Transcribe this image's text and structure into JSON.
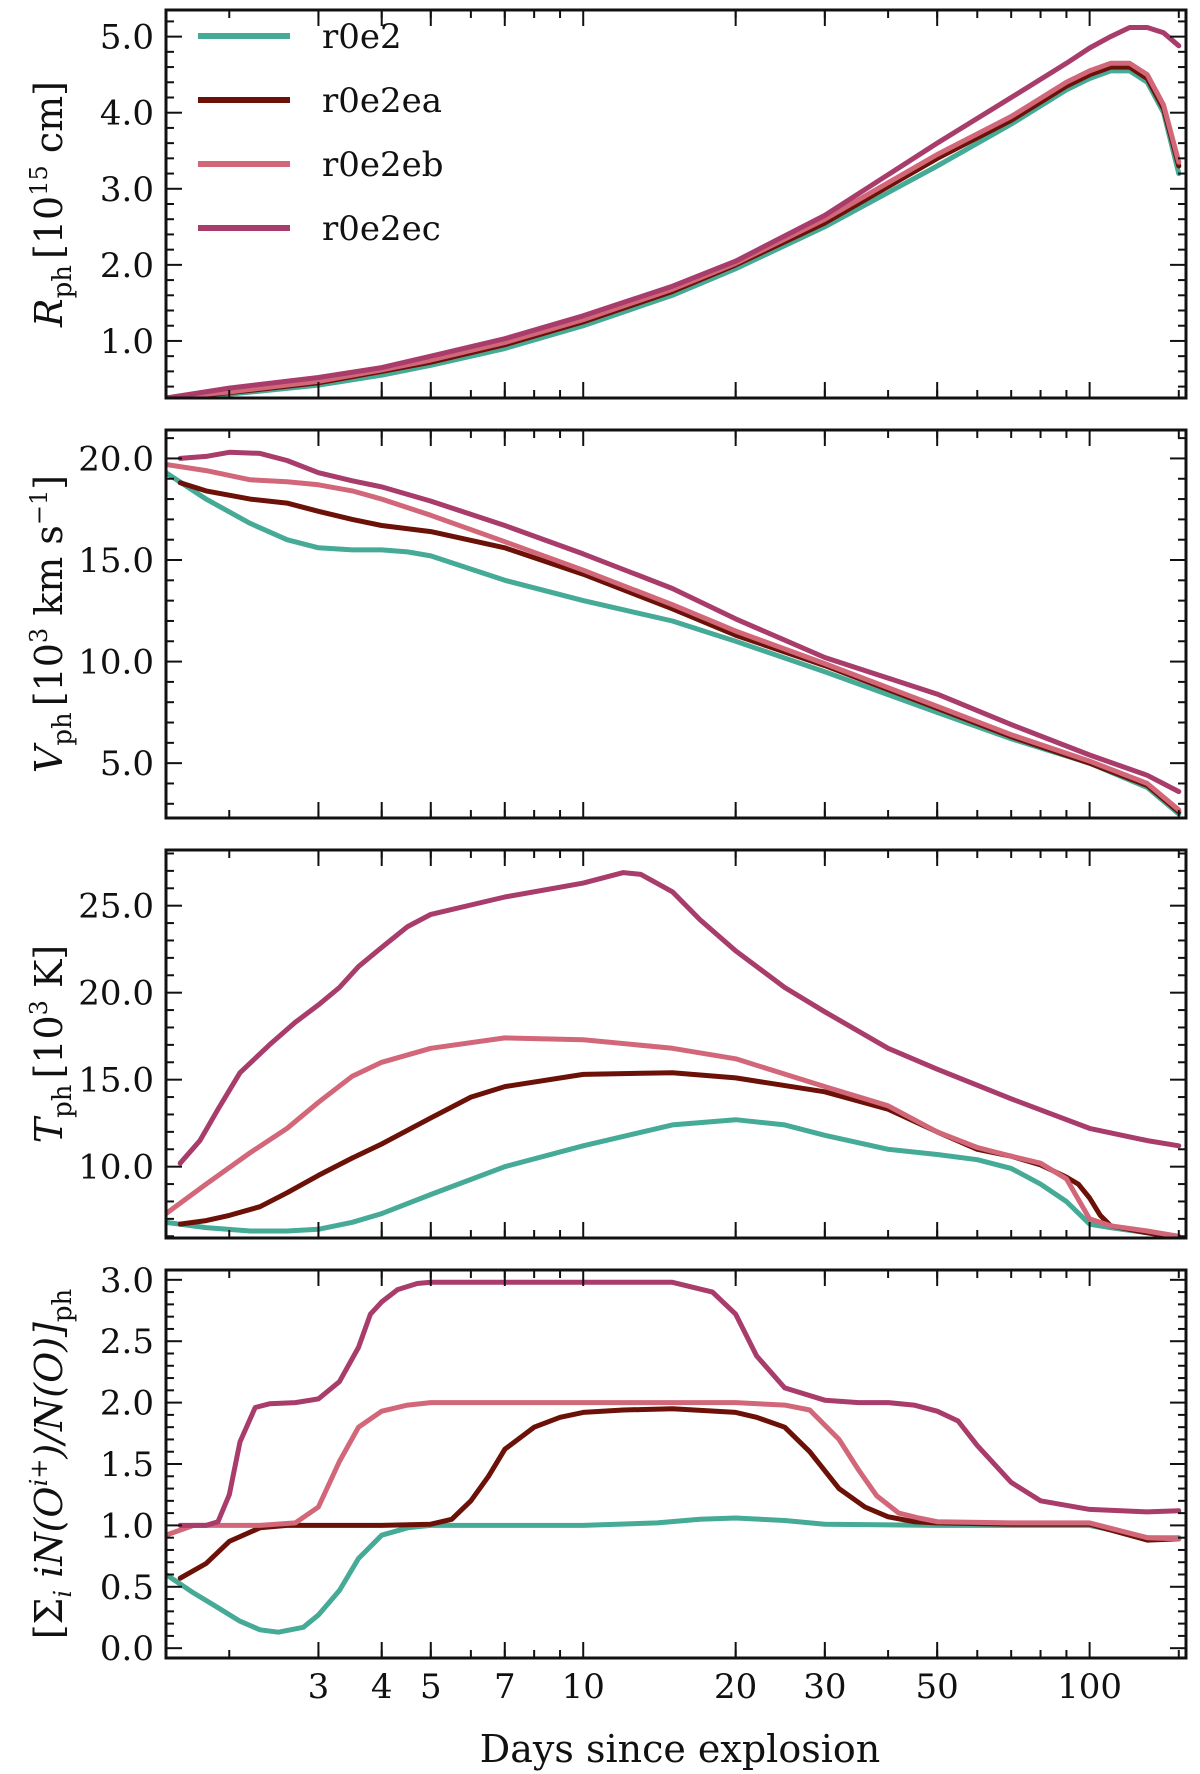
{
  "figure": {
    "xlabel": "Days since explosion",
    "xscale": "log",
    "xlim": [
      1.5,
      155
    ],
    "xticks": [
      3,
      4,
      5,
      7,
      10,
      20,
      30,
      50,
      100
    ],
    "xtick_labels": [
      "3",
      "4",
      "5",
      "7",
      "10",
      "20",
      "30",
      "50",
      "100"
    ]
  },
  "legend": {
    "placement": "top-left of first panel",
    "entries": [
      {
        "name": "r0e2",
        "color": "#45aa96"
      },
      {
        "name": "r0e2ea",
        "color": "#6b1108"
      },
      {
        "name": "r0e2eb",
        "color": "#d2677a"
      },
      {
        "name": "r0e2ec",
        "color": "#a83c6a"
      }
    ]
  },
  "chart_data": [
    {
      "type": "line",
      "ylabel": "R_ph [10^15 cm]",
      "ylabel_parts": {
        "sym": "R",
        "sub": "ph",
        "pre": "[10",
        "sup": "15",
        "post": " cm]"
      },
      "ylim": [
        0.25,
        5.35
      ],
      "yticks": [
        1.0,
        2.0,
        3.0,
        4.0,
        5.0
      ],
      "ytick_labels": [
        "1.0",
        "2.0",
        "3.0",
        "4.0",
        "5.0"
      ],
      "series": [
        {
          "name": "r0e2",
          "color": "#45aa96",
          "x": [
            1.5,
            2,
            3,
            4,
            5,
            7,
            10,
            15,
            20,
            30,
            50,
            70,
            90,
            100,
            110,
            120,
            130,
            140,
            150
          ],
          "y": [
            0.25,
            0.3,
            0.42,
            0.55,
            0.68,
            0.9,
            1.2,
            1.6,
            1.95,
            2.5,
            3.3,
            3.85,
            4.3,
            4.45,
            4.55,
            4.55,
            4.4,
            4.0,
            3.2
          ]
        },
        {
          "name": "r0e2ea",
          "color": "#6b1108",
          "x": [
            1.5,
            2,
            3,
            4,
            5,
            7,
            10,
            15,
            20,
            30,
            50,
            70,
            90,
            100,
            110,
            120,
            130,
            140,
            150
          ],
          "y": [
            0.25,
            0.32,
            0.45,
            0.6,
            0.72,
            0.95,
            1.25,
            1.65,
            2.0,
            2.55,
            3.4,
            3.9,
            4.35,
            4.5,
            4.6,
            4.6,
            4.45,
            4.05,
            3.3
          ]
        },
        {
          "name": "r0e2eb",
          "color": "#d2677a",
          "x": [
            1.5,
            2,
            3,
            4,
            5,
            7,
            10,
            15,
            20,
            30,
            50,
            70,
            90,
            100,
            110,
            120,
            130,
            140,
            150
          ],
          "y": [
            0.25,
            0.33,
            0.47,
            0.62,
            0.75,
            0.98,
            1.28,
            1.68,
            2.02,
            2.6,
            3.45,
            3.95,
            4.4,
            4.55,
            4.65,
            4.65,
            4.5,
            4.1,
            3.35
          ]
        },
        {
          "name": "r0e2ec",
          "color": "#a83c6a",
          "x": [
            1.5,
            2,
            3,
            4,
            5,
            7,
            10,
            15,
            20,
            30,
            50,
            70,
            90,
            100,
            110,
            120,
            130,
            140,
            150
          ],
          "y": [
            0.25,
            0.38,
            0.52,
            0.65,
            0.8,
            1.03,
            1.33,
            1.72,
            2.05,
            2.65,
            3.6,
            4.2,
            4.65,
            4.85,
            5.0,
            5.12,
            5.12,
            5.05,
            4.88
          ]
        }
      ]
    },
    {
      "type": "line",
      "ylabel": "V_ph [10^3 km s^-1]",
      "ylabel_parts": {
        "sym": "V",
        "sub": "ph",
        "pre": "[10",
        "sup": "3",
        "post": " km s",
        "sup2": "−1",
        "post2": "]"
      },
      "ylim": [
        2.3,
        21.4
      ],
      "yticks": [
        5.0,
        10.0,
        15.0,
        20.0
      ],
      "ytick_labels": [
        "5.0",
        "10.0",
        "15.0",
        "20.0"
      ],
      "series": [
        {
          "name": "r0e2",
          "color": "#45aa96",
          "x": [
            1.5,
            1.8,
            2.2,
            2.6,
            3,
            3.5,
            4,
            4.5,
            5,
            7,
            10,
            15,
            20,
            30,
            50,
            70,
            100,
            130,
            150
          ],
          "y": [
            19.3,
            18.0,
            16.8,
            16.0,
            15.6,
            15.5,
            15.5,
            15.4,
            15.2,
            14.0,
            13.0,
            12.0,
            11.0,
            9.5,
            7.5,
            6.2,
            5.0,
            3.8,
            2.5
          ]
        },
        {
          "name": "r0e2ea",
          "color": "#6b1108",
          "x": [
            1.6,
            1.8,
            2.2,
            2.6,
            3,
            3.5,
            4,
            5,
            7,
            10,
            15,
            20,
            30,
            50,
            70,
            100,
            130,
            150
          ],
          "y": [
            18.8,
            18.4,
            18.0,
            17.8,
            17.4,
            17.0,
            16.7,
            16.4,
            15.6,
            14.3,
            12.6,
            11.3,
            9.8,
            7.7,
            6.3,
            5.0,
            3.9,
            2.6
          ]
        },
        {
          "name": "r0e2eb",
          "color": "#d2677a",
          "x": [
            1.5,
            1.8,
            2.2,
            2.6,
            3,
            3.5,
            4,
            5,
            7,
            10,
            15,
            20,
            30,
            50,
            70,
            100,
            130,
            150
          ],
          "y": [
            19.7,
            19.4,
            18.95,
            18.85,
            18.7,
            18.4,
            18.0,
            17.2,
            15.9,
            14.5,
            12.8,
            11.5,
            9.9,
            7.8,
            6.4,
            5.1,
            4.0,
            2.7
          ]
        },
        {
          "name": "r0e2ec",
          "color": "#a83c6a",
          "x": [
            1.6,
            1.8,
            2.0,
            2.3,
            2.6,
            3,
            3.5,
            4,
            5,
            7,
            10,
            15,
            20,
            30,
            50,
            70,
            100,
            130,
            150
          ],
          "y": [
            20.0,
            20.1,
            20.3,
            20.25,
            19.9,
            19.3,
            18.9,
            18.6,
            17.9,
            16.7,
            15.3,
            13.6,
            12.1,
            10.2,
            8.4,
            6.9,
            5.4,
            4.4,
            3.6
          ]
        }
      ]
    },
    {
      "type": "line",
      "ylabel": "T_ph [10^3 K]",
      "ylabel_parts": {
        "sym": "T",
        "sub": "ph",
        "pre": "[10",
        "sup": "3",
        "post": " K]"
      },
      "ylim": [
        5.9,
        28.2
      ],
      "yticks": [
        10.0,
        15.0,
        20.0,
        25.0
      ],
      "ytick_labels": [
        "10.0",
        "15.0",
        "20.0",
        "25.0"
      ],
      "series": [
        {
          "name": "r0e2",
          "color": "#45aa96",
          "x": [
            1.5,
            1.8,
            2.2,
            2.6,
            3,
            3.5,
            4,
            5,
            7,
            10,
            15,
            20,
            25,
            30,
            40,
            50,
            60,
            70,
            80,
            90,
            100,
            110,
            130,
            150
          ],
          "y": [
            6.8,
            6.5,
            6.3,
            6.3,
            6.4,
            6.8,
            7.3,
            8.4,
            10.0,
            11.2,
            12.4,
            12.7,
            12.4,
            11.8,
            11.0,
            10.7,
            10.4,
            9.9,
            9.0,
            8.0,
            6.7,
            6.5,
            6.2,
            6.0
          ]
        },
        {
          "name": "r0e2ea",
          "color": "#6b1108",
          "x": [
            1.6,
            1.8,
            2,
            2.3,
            2.6,
            3,
            3.5,
            4,
            5,
            6,
            7,
            10,
            15,
            20,
            30,
            40,
            50,
            60,
            70,
            80,
            90,
            95,
            100,
            105,
            110,
            130,
            150
          ],
          "y": [
            6.7,
            6.9,
            7.2,
            7.7,
            8.5,
            9.5,
            10.5,
            11.3,
            12.8,
            14.0,
            14.6,
            15.3,
            15.4,
            15.1,
            14.3,
            13.3,
            12.0,
            11.0,
            10.6,
            10.1,
            9.4,
            9.0,
            8.2,
            7.2,
            6.6,
            6.2,
            5.9
          ]
        },
        {
          "name": "r0e2eb",
          "color": "#d2677a",
          "x": [
            1.5,
            1.8,
            2.2,
            2.6,
            3,
            3.5,
            4,
            5,
            7,
            10,
            15,
            20,
            30,
            40,
            50,
            60,
            70,
            80,
            90,
            100,
            110,
            130,
            150
          ],
          "y": [
            7.3,
            9.0,
            10.8,
            12.2,
            13.7,
            15.2,
            16.0,
            16.8,
            17.4,
            17.3,
            16.8,
            16.2,
            14.6,
            13.5,
            12.0,
            11.1,
            10.6,
            10.2,
            9.3,
            7.0,
            6.6,
            6.3,
            6.0
          ]
        },
        {
          "name": "r0e2ec",
          "color": "#a83c6a",
          "x": [
            1.6,
            1.75,
            1.9,
            2.1,
            2.4,
            2.7,
            3,
            3.3,
            3.6,
            4,
            4.5,
            5,
            7,
            10,
            12,
            13,
            15,
            17,
            20,
            25,
            30,
            40,
            50,
            70,
            100,
            130,
            150
          ],
          "y": [
            10.2,
            11.5,
            13.3,
            15.4,
            17.0,
            18.3,
            19.3,
            20.3,
            21.5,
            22.6,
            23.8,
            24.5,
            25.5,
            26.3,
            26.9,
            26.8,
            25.8,
            24.2,
            22.4,
            20.3,
            18.9,
            16.8,
            15.6,
            13.9,
            12.2,
            11.5,
            11.2
          ]
        }
      ]
    },
    {
      "type": "line",
      "ylabel": "[Σ_i i N(O^i+)/N(O)]_ph",
      "ylabel_parts": {
        "pre": "[Σ",
        "sub": "i",
        "mid": " iN(O",
        "sup": "i+",
        "post": ")/N(O)]",
        "sub2": "ph"
      },
      "ylim": [
        -0.08,
        3.08
      ],
      "yticks": [
        0.0,
        0.5,
        1.0,
        1.5,
        2.0,
        2.5,
        3.0
      ],
      "ytick_labels": [
        "0.0",
        "0.5",
        "1.0",
        "1.5",
        "2.0",
        "2.5",
        "3.0"
      ],
      "series": [
        {
          "name": "r0e2",
          "color": "#45aa96",
          "x": [
            1.5,
            1.7,
            1.9,
            2.1,
            2.3,
            2.5,
            2.8,
            3.0,
            3.3,
            3.6,
            4.0,
            4.5,
            5,
            7,
            10,
            14,
            17,
            20,
            25,
            30,
            50,
            70,
            100,
            130,
            150
          ],
          "y": [
            0.6,
            0.45,
            0.33,
            0.22,
            0.15,
            0.13,
            0.17,
            0.27,
            0.47,
            0.73,
            0.92,
            0.98,
            1.0,
            1.0,
            1.0,
            1.02,
            1.05,
            1.06,
            1.04,
            1.01,
            1.0,
            1.0,
            1.0,
            0.9,
            0.9
          ]
        },
        {
          "name": "r0e2ea",
          "color": "#6b1108",
          "x": [
            1.6,
            1.8,
            2.0,
            2.3,
            2.6,
            3,
            4,
            5,
            5.5,
            6,
            6.5,
            7,
            8,
            9,
            10,
            12,
            15,
            20,
            22,
            25,
            28,
            32,
            36,
            40,
            45,
            50,
            70,
            100,
            130,
            150
          ],
          "y": [
            0.57,
            0.69,
            0.87,
            0.98,
            1.0,
            1.0,
            1.0,
            1.01,
            1.05,
            1.2,
            1.4,
            1.62,
            1.8,
            1.88,
            1.92,
            1.94,
            1.95,
            1.92,
            1.88,
            1.8,
            1.6,
            1.3,
            1.15,
            1.07,
            1.03,
            1.02,
            1.01,
            1.01,
            0.88,
            0.89
          ]
        },
        {
          "name": "r0e2eb",
          "color": "#d2677a",
          "x": [
            1.5,
            1.7,
            2,
            2.3,
            2.7,
            3.0,
            3.3,
            3.6,
            4.0,
            4.5,
            5,
            7,
            10,
            15,
            20,
            25,
            28,
            32,
            35,
            38,
            42,
            46,
            50,
            70,
            100,
            130,
            150
          ],
          "y": [
            0.92,
            1.0,
            1.0,
            1.0,
            1.02,
            1.15,
            1.52,
            1.8,
            1.93,
            1.98,
            2.0,
            2.0,
            2.0,
            2.0,
            2.0,
            1.98,
            1.94,
            1.7,
            1.45,
            1.24,
            1.1,
            1.06,
            1.03,
            1.02,
            1.02,
            0.9,
            0.89
          ]
        },
        {
          "name": "r0e2ec",
          "color": "#a83c6a",
          "x": [
            1.6,
            1.8,
            1.9,
            2.0,
            2.1,
            2.25,
            2.4,
            2.7,
            3.0,
            3.3,
            3.6,
            3.8,
            4.0,
            4.3,
            4.7,
            5,
            7,
            10,
            15,
            18,
            20,
            22,
            25,
            30,
            35,
            40,
            45,
            50,
            55,
            60,
            70,
            80,
            100,
            130,
            150
          ],
          "y": [
            1.0,
            1.0,
            1.03,
            1.25,
            1.68,
            1.96,
            1.99,
            2.0,
            2.03,
            2.17,
            2.45,
            2.72,
            2.82,
            2.92,
            2.97,
            2.98,
            2.98,
            2.98,
            2.98,
            2.9,
            2.72,
            2.38,
            2.12,
            2.02,
            2.0,
            2.0,
            1.98,
            1.93,
            1.85,
            1.65,
            1.35,
            1.2,
            1.13,
            1.11,
            1.12
          ]
        }
      ]
    }
  ]
}
